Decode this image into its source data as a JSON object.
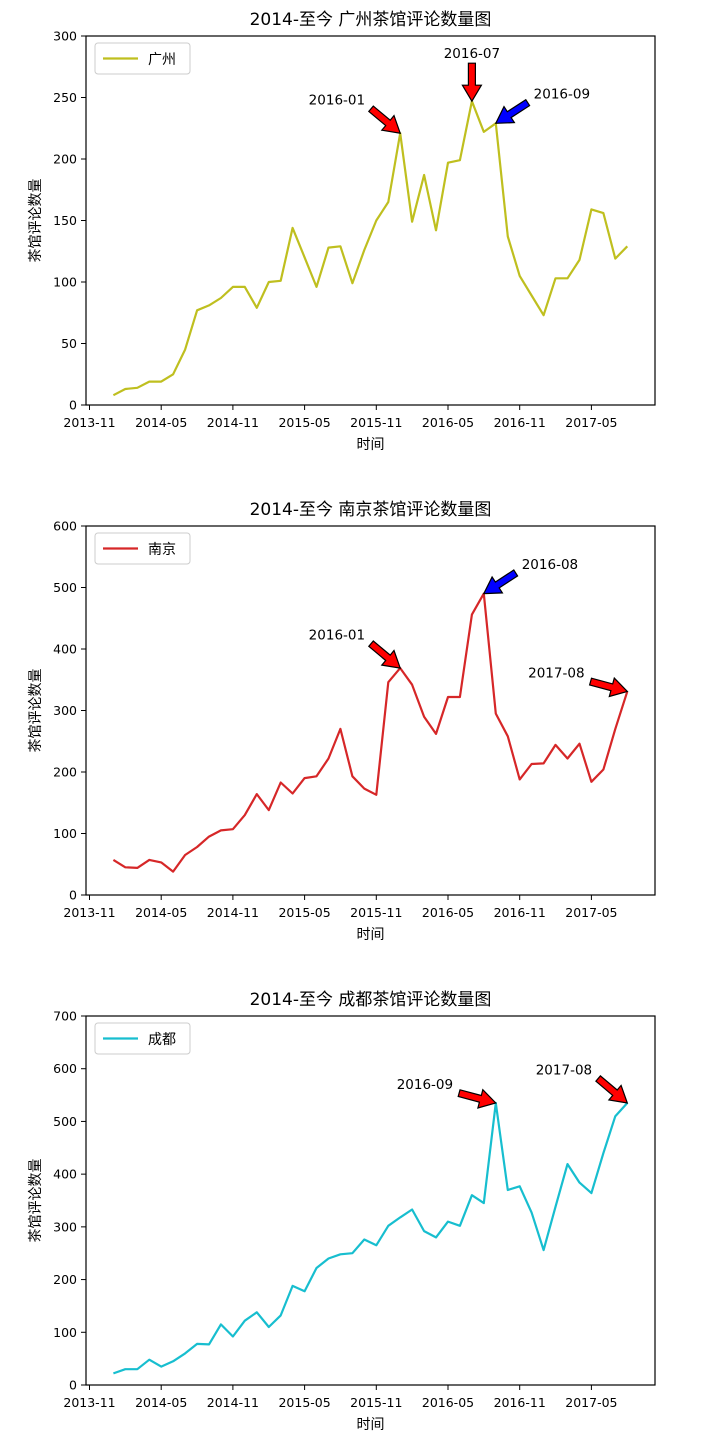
{
  "xticks": [
    "2013-11",
    "2014-05",
    "2014-11",
    "2015-05",
    "2015-11",
    "2016-05",
    "2016-11",
    "2017-05"
  ],
  "months": [
    "2014-01",
    "2014-02",
    "2014-03",
    "2014-04",
    "2014-05",
    "2014-06",
    "2014-07",
    "2014-08",
    "2014-09",
    "2014-10",
    "2014-11",
    "2014-12",
    "2015-01",
    "2015-02",
    "2015-03",
    "2015-04",
    "2015-05",
    "2015-06",
    "2015-07",
    "2015-08",
    "2015-09",
    "2015-10",
    "2015-11",
    "2015-12",
    "2016-01",
    "2016-02",
    "2016-03",
    "2016-04",
    "2016-05",
    "2016-06",
    "2016-07",
    "2016-08",
    "2016-09",
    "2016-10",
    "2016-11",
    "2016-12",
    "2017-01",
    "2017-02",
    "2017-03",
    "2017-04",
    "2017-05",
    "2017-06",
    "2017-07",
    "2017-08"
  ],
  "chart_data": [
    {
      "type": "line",
      "title": "2014-至今 广州茶馆评论数量图",
      "xlabel": "时间",
      "ylabel": "茶馆评论数量",
      "ylim": [
        0,
        300
      ],
      "yticks": [
        0,
        50,
        100,
        150,
        200,
        250,
        300
      ],
      "legend_position": "top-left",
      "color": "#bfbf1f",
      "series": [
        {
          "name": "广州",
          "values": [
            8,
            13,
            14,
            19,
            19,
            25,
            45,
            77,
            81,
            87,
            96,
            96,
            79,
            100,
            101,
            144,
            120,
            96,
            128,
            129,
            99,
            126,
            150,
            165,
            221,
            149,
            187,
            142,
            197,
            199,
            247,
            222,
            229,
            137,
            105,
            89,
            73,
            103,
            103,
            118,
            159,
            156,
            119,
            129
          ]
        }
      ],
      "annotations": [
        {
          "text": "2016-01",
          "x": "2016-01",
          "y": 221,
          "arrow_color": "#ff0000",
          "side": "upper-left"
        },
        {
          "text": "2016-07",
          "x": "2016-07",
          "y": 247,
          "arrow_color": "#ff0000",
          "side": "above"
        },
        {
          "text": "2016-09",
          "x": "2016-09",
          "y": 229,
          "arrow_color": "#0000ff",
          "side": "upper-right"
        }
      ]
    },
    {
      "type": "line",
      "title": "2014-至今 南京茶馆评论数量图",
      "xlabel": "时间",
      "ylabel": "茶馆评论数量",
      "ylim": [
        0,
        600
      ],
      "yticks": [
        0,
        100,
        200,
        300,
        400,
        500,
        600
      ],
      "legend_position": "top-left",
      "color": "#d62728",
      "series": [
        {
          "name": "南京",
          "values": [
            57,
            45,
            44,
            57,
            53,
            38,
            65,
            78,
            95,
            105,
            107,
            130,
            164,
            138,
            183,
            165,
            190,
            193,
            222,
            270,
            193,
            173,
            163,
            346,
            369,
            342,
            290,
            262,
            322,
            322,
            456,
            490,
            295,
            258,
            188,
            213,
            214,
            244,
            222,
            246,
            184,
            204,
            270,
            331
          ]
        }
      ],
      "annotations": [
        {
          "text": "2016-01",
          "x": "2016-01",
          "y": 369,
          "arrow_color": "#ff0000",
          "side": "upper-left"
        },
        {
          "text": "2016-08",
          "x": "2016-08",
          "y": 490,
          "arrow_color": "#0000ff",
          "side": "upper-right"
        },
        {
          "text": "2017-08",
          "x": "2017-08",
          "y": 331,
          "arrow_color": "#ff0000",
          "side": "left"
        }
      ]
    },
    {
      "type": "line",
      "title": "2014-至今 成都茶馆评论数量图",
      "xlabel": "时间",
      "ylabel": "茶馆评论数量",
      "ylim": [
        0,
        700
      ],
      "yticks": [
        0,
        100,
        200,
        300,
        400,
        500,
        600,
        700
      ],
      "legend_position": "top-left",
      "color": "#17becf",
      "series": [
        {
          "name": "成都",
          "values": [
            22,
            30,
            30,
            48,
            35,
            45,
            60,
            78,
            77,
            115,
            92,
            122,
            138,
            110,
            132,
            188,
            178,
            222,
            240,
            248,
            250,
            276,
            265,
            302,
            318,
            333,
            292,
            280,
            310,
            302,
            360,
            345,
            535,
            370,
            377,
            327,
            256,
            338,
            419,
            384,
            364,
            440,
            510,
            535
          ]
        }
      ],
      "annotations": [
        {
          "text": "2016-09",
          "x": "2016-09",
          "y": 535,
          "arrow_color": "#ff0000",
          "side": "left"
        },
        {
          "text": "2017-08",
          "x": "2017-08",
          "y": 535,
          "arrow_color": "#ff0000",
          "side": "upper-left"
        }
      ]
    }
  ]
}
